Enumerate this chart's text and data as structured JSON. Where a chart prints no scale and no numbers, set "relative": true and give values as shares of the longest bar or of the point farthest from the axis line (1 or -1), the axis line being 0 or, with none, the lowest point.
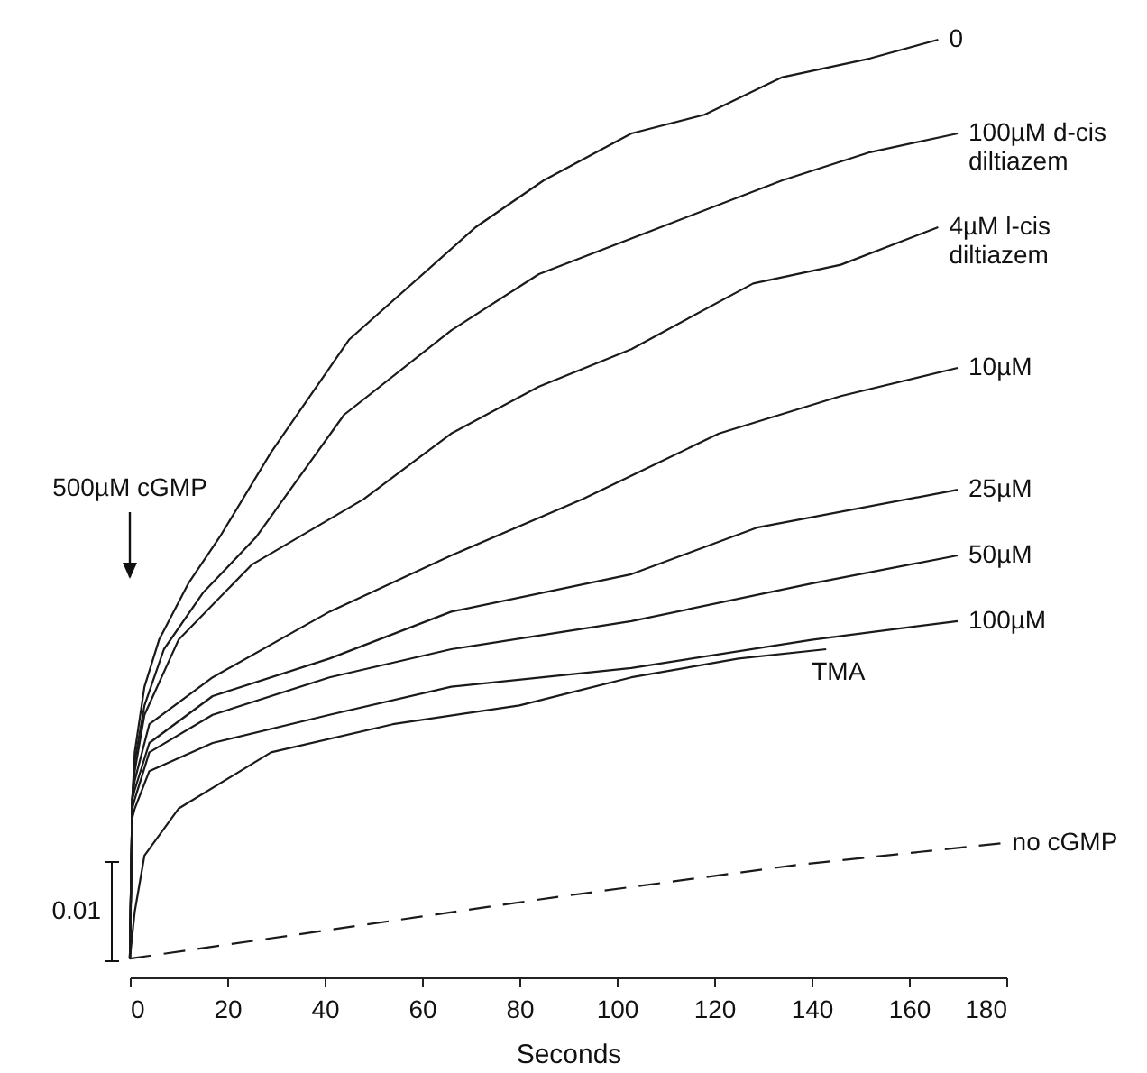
{
  "chart_data": {
    "type": "line",
    "relative": true,
    "xlabel": "Seconds",
    "xlim": [
      0,
      180
    ],
    "xticks": [
      0,
      20,
      40,
      60,
      80,
      100,
      120,
      140,
      160,
      180
    ],
    "annotations": [
      "500µM cGMP",
      "0.01"
    ],
    "series": [
      {
        "name": "0",
        "color": "#1a1a1a",
        "x": [
          0,
          0.5,
          1,
          3,
          6,
          12,
          18.5,
          29,
          45,
          71,
          85,
          103,
          118,
          134,
          152,
          166
        ],
        "values": [
          0.02,
          0.19,
          0.24,
          0.31,
          0.36,
          0.42,
          0.47,
          0.56,
          0.68,
          0.8,
          0.85,
          0.9,
          0.92,
          0.96,
          0.98,
          1
        ]
      },
      {
        "name": "100µM d-cis diltiazem",
        "color": "#1a1a1a",
        "x": [
          0,
          0.5,
          1,
          3,
          7,
          15,
          26,
          44,
          66,
          84,
          109,
          134,
          152,
          170
        ],
        "values": [
          0.02,
          0.19,
          0.23,
          0.29,
          0.35,
          0.41,
          0.47,
          0.6,
          0.69,
          0.75,
          0.8,
          0.85,
          0.88,
          0.9
        ]
      },
      {
        "name": "4µM l-cis diltiazem",
        "color": "#1a1a1a",
        "x": [
          0,
          0.5,
          1,
          3,
          10,
          25,
          48,
          66,
          84,
          103,
          128,
          146,
          166
        ],
        "values": [
          0.02,
          0.19,
          0.22,
          0.28,
          0.36,
          0.44,
          0.51,
          0.58,
          0.63,
          0.67,
          0.74,
          0.76,
          0.8
        ]
      },
      {
        "name": "10µM",
        "color": "#1a1a1a",
        "x": [
          0,
          0.5,
          1,
          4,
          17,
          41,
          66,
          93,
          121,
          146,
          170
        ],
        "values": [
          0.02,
          0.19,
          0.21,
          0.27,
          0.32,
          0.39,
          0.45,
          0.51,
          0.58,
          0.62,
          0.65
        ]
      },
      {
        "name": "25µM",
        "color": "#1a1a1a",
        "x": [
          0,
          0.5,
          1,
          4,
          17,
          41,
          66,
          103,
          129,
          170
        ],
        "values": [
          0.02,
          0.19,
          0.2,
          0.25,
          0.3,
          0.34,
          0.39,
          0.43,
          0.48,
          0.52
        ]
      },
      {
        "name": "50µM",
        "color": "#1a1a1a",
        "x": [
          0,
          0.5,
          1,
          4,
          17,
          41,
          66,
          103,
          140,
          170
        ],
        "values": [
          0.02,
          0.18,
          0.19,
          0.24,
          0.28,
          0.32,
          0.35,
          0.38,
          0.42,
          0.45
        ]
      },
      {
        "name": "100µM",
        "color": "#1a1a1a",
        "x": [
          0,
          0.5,
          1,
          4,
          17,
          41,
          66,
          103,
          140,
          170
        ],
        "values": [
          0.02,
          0.17,
          0.18,
          0.22,
          0.25,
          0.28,
          0.31,
          0.33,
          0.36,
          0.38
        ]
      },
      {
        "name": "TMA",
        "color": "#1a1a1a",
        "x": [
          0,
          1,
          3,
          10,
          29,
          54,
          80,
          103,
          125,
          143
        ],
        "values": [
          0.02,
          0.07,
          0.13,
          0.18,
          0.24,
          0.27,
          0.29,
          0.32,
          0.34,
          0.35
        ]
      },
      {
        "name": "no cGMP",
        "color": "#1a1a1a",
        "line_style": "dashed",
        "x": [
          0,
          20,
          40,
          60,
          88,
          137,
          179
        ],
        "values": [
          0.02,
          0.035,
          0.05,
          0.065,
          0.086,
          0.12,
          0.143
        ]
      }
    ]
  }
}
